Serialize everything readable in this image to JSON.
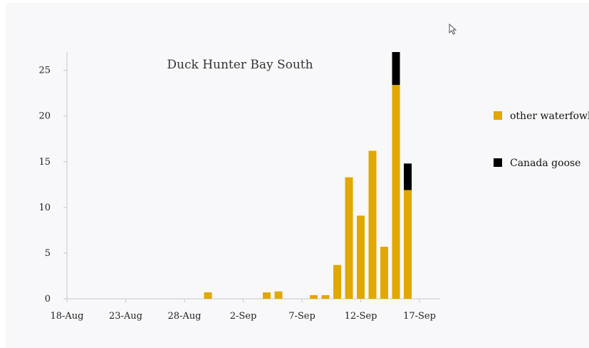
{
  "chart_data": {
    "type": "bar",
    "stacked": true,
    "title": "Duck Hunter Bay South",
    "xlabel": "",
    "ylabel": "",
    "x_tick_labels": [
      "18-Aug",
      "23-Aug",
      "28-Aug",
      "2-Sep",
      "7-Sep",
      "12-Sep",
      "17-Sep"
    ],
    "x_tick_dates": [
      "2020-08-18",
      "2020-08-23",
      "2020-08-28",
      "2020-09-02",
      "2020-09-07",
      "2020-09-12",
      "2020-09-17"
    ],
    "x_range": [
      "2020-08-18",
      "2020-09-18"
    ],
    "ylim": [
      0,
      27
    ],
    "y_ticks": [
      0,
      5,
      10,
      15,
      20,
      25
    ],
    "grid": false,
    "legend_position": "right",
    "series": [
      {
        "name": "other waterfowl",
        "color": "#e0a800",
        "points": [
          {
            "date": "2020-08-30",
            "value": 0.7
          },
          {
            "date": "2020-09-04",
            "value": 0.7
          },
          {
            "date": "2020-09-05",
            "value": 0.8
          },
          {
            "date": "2020-09-08",
            "value": 0.4
          },
          {
            "date": "2020-09-09",
            "value": 0.4
          },
          {
            "date": "2020-09-10",
            "value": 3.7
          },
          {
            "date": "2020-09-11",
            "value": 13.3
          },
          {
            "date": "2020-09-12",
            "value": 9.1
          },
          {
            "date": "2020-09-13",
            "value": 16.2
          },
          {
            "date": "2020-09-14",
            "value": 5.7
          },
          {
            "date": "2020-09-15",
            "value": 23.4
          },
          {
            "date": "2020-09-16",
            "value": 11.9
          }
        ]
      },
      {
        "name": "Canada goose",
        "color": "#000000",
        "points": [
          {
            "date": "2020-09-15",
            "value": 3.6
          },
          {
            "date": "2020-09-16",
            "value": 2.9
          }
        ]
      }
    ]
  },
  "colors": {
    "background": "#f8f7f9",
    "axis": "#c8c8c8",
    "pointer": "#555555"
  },
  "icons": {
    "pointer": "mouse-pointer-icon"
  }
}
